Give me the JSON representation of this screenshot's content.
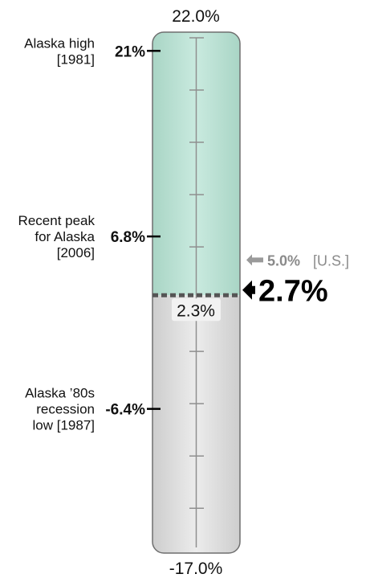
{
  "colors": {
    "above_fill": "#bfe3d6",
    "below_fill": "#e0e0e0",
    "scale_line": "#8f8f8f",
    "current_arrow": "#000000",
    "us_arrow": "#9a9a9a",
    "us_text": "#8a8a8a"
  },
  "chart_data": {
    "type": "gauge",
    "scale_min_label": "-17.0%",
    "scale_max_label": "22.0%",
    "ylim": [
      -17.0,
      22.0
    ],
    "minor_ticks": [
      -14.0,
      -10.0,
      -6.0,
      -2.0,
      6.0,
      10.0,
      14.0,
      18.0,
      22.0
    ],
    "threshold": {
      "value": 2.3,
      "label": "2.3%"
    },
    "current": {
      "value": 2.7,
      "label": "2.7%"
    },
    "us": {
      "value": 5.0,
      "label": "5.0%",
      "tag": "[U.S.]"
    },
    "markers": [
      {
        "value": 21,
        "value_label": "21%",
        "lines": [
          "Alaska high",
          "[1981]"
        ]
      },
      {
        "value": 6.8,
        "value_label": "6.8%",
        "lines": [
          "Recent peak",
          "for Alaska",
          "[2006]"
        ]
      },
      {
        "value": -6.4,
        "value_label": "-6.4%",
        "lines": [
          "Alaska ’80s",
          "recession",
          "low [1987]"
        ]
      }
    ]
  }
}
